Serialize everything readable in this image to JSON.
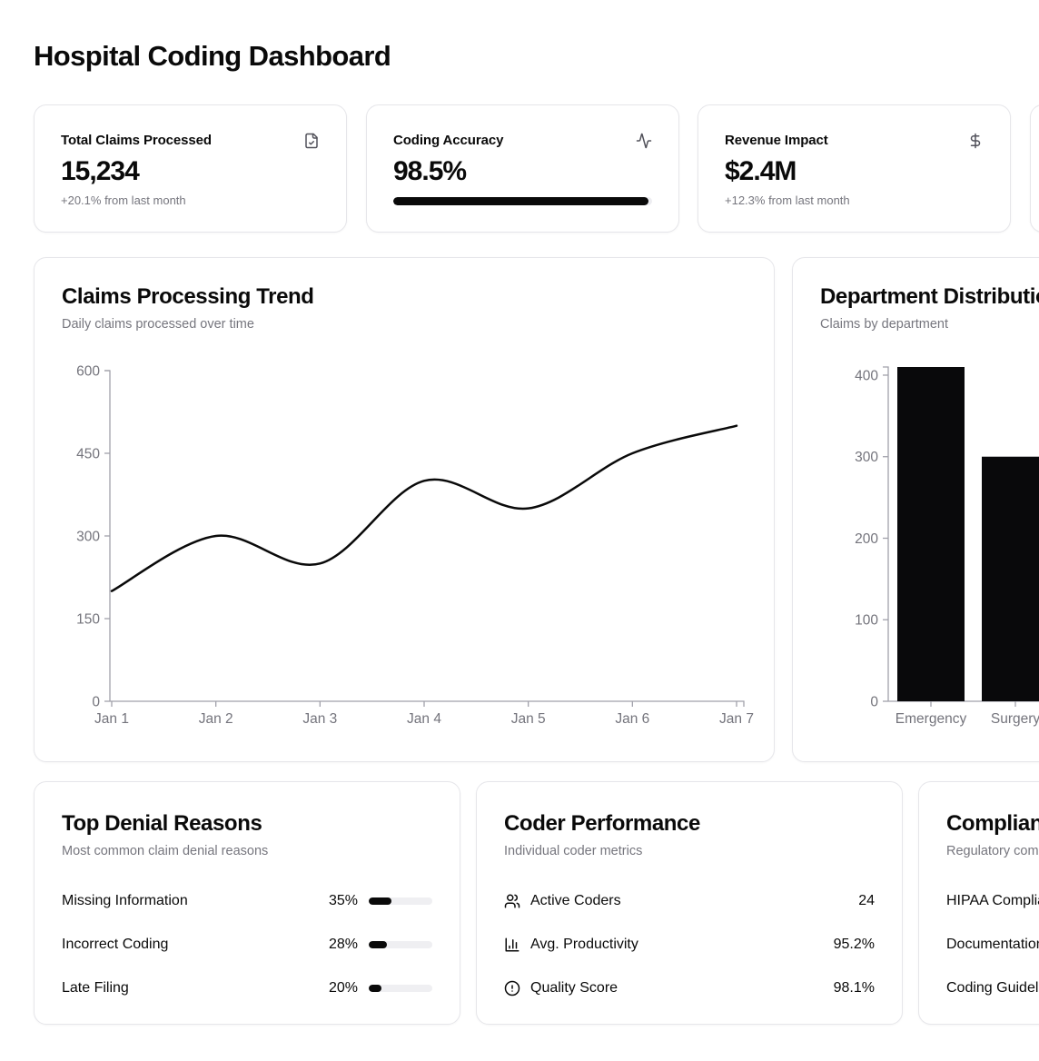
{
  "page": {
    "title": "Hospital Coding Dashboard"
  },
  "stats": [
    {
      "label": "Total Claims Processed",
      "value": "15,234",
      "sub": "+20.1% from last month",
      "icon": "file-check-icon"
    },
    {
      "label": "Coding Accuracy",
      "value": "98.5%",
      "progress_pct": 98.5,
      "icon": "activity-icon"
    },
    {
      "label": "Revenue Impact",
      "value": "$2.4M",
      "sub": "+12.3% from last month",
      "icon": "dollar-icon"
    }
  ],
  "charts": {
    "claims_trend": {
      "title": "Claims Processing Trend",
      "subtitle": "Daily claims processed over time"
    },
    "department": {
      "title": "Department Distribution",
      "subtitle": "Claims by department"
    }
  },
  "chart_data": [
    {
      "type": "line",
      "title": "Claims Processing Trend",
      "subtitle": "Daily claims processed over time",
      "x": [
        "Jan 1",
        "Jan 2",
        "Jan 3",
        "Jan 4",
        "Jan 5",
        "Jan 6",
        "Jan 7"
      ],
      "series": [
        {
          "name": "Daily claims processed",
          "values": [
            200,
            300,
            250,
            400,
            350,
            450,
            500
          ]
        }
      ],
      "ylim": [
        0,
        600
      ],
      "yticks": [
        0,
        150,
        300,
        450,
        600
      ],
      "grid": false,
      "legend": "none",
      "line_color": "#0a0a0a"
    },
    {
      "type": "bar",
      "title": "Department Distribution",
      "subtitle": "Claims by department",
      "categories": [
        "Emergency",
        "Surgery"
      ],
      "values": [
        410,
        300
      ],
      "clipped_right": true,
      "ylim": [
        0,
        410
      ],
      "yticks": [
        0,
        100,
        200,
        300,
        400
      ],
      "grid": false,
      "legend": "none",
      "bar_color": "#09090b"
    }
  ],
  "denials": {
    "title": "Top Denial Reasons",
    "subtitle": "Most common claim denial reasons",
    "rows": [
      {
        "label": "Missing Information",
        "pct": "35%",
        "value": 35
      },
      {
        "label": "Incorrect Coding",
        "pct": "28%",
        "value": 28
      },
      {
        "label": "Late Filing",
        "pct": "20%",
        "value": 20
      }
    ]
  },
  "coders": {
    "title": "Coder Performance",
    "subtitle": "Individual coder metrics",
    "rows": [
      {
        "icon": "users-icon",
        "label": "Active Coders",
        "value": "24"
      },
      {
        "icon": "chart-column-icon",
        "label": "Avg. Productivity",
        "value": "95.2%"
      },
      {
        "icon": "alert-circle-icon",
        "label": "Quality Score",
        "value": "98.1%"
      }
    ]
  },
  "compliance": {
    "title": "Compliance Status",
    "subtitle": "Regulatory compliance status",
    "rows": [
      {
        "label": "HIPAA Compliance"
      },
      {
        "label": "Documentation"
      },
      {
        "label": "Coding Guidelines"
      }
    ]
  }
}
